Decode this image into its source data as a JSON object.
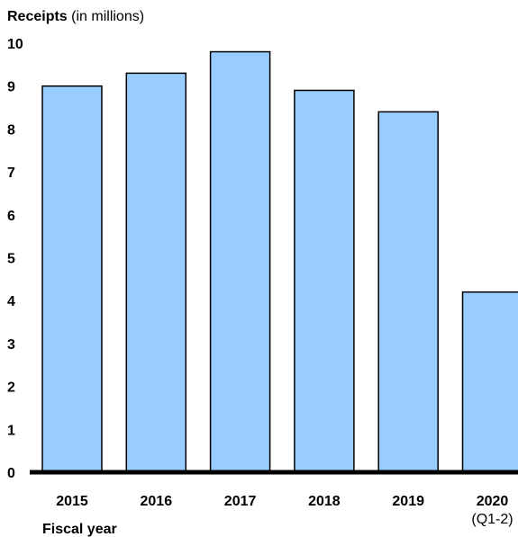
{
  "chart_data": {
    "type": "bar",
    "ylabel_bold": "Receipts",
    "ylabel_rest": " (in millions)",
    "xlabel": "Fiscal year",
    "categories": [
      "2015",
      "2016",
      "2017",
      "2018",
      "2019",
      "2020"
    ],
    "category_sublabels": [
      "",
      "",
      "",
      "",
      "",
      "(Q1-2)"
    ],
    "values": [
      9.0,
      9.3,
      9.8,
      8.9,
      8.4,
      4.2
    ],
    "ylim": [
      0,
      10
    ],
    "yticks": [
      0,
      1,
      2,
      3,
      4,
      5,
      6,
      7,
      8,
      9,
      10
    ],
    "grid": false,
    "bar_color": "#99ccff",
    "bar_edge_color": "#000000",
    "axis_color": "#000000"
  }
}
